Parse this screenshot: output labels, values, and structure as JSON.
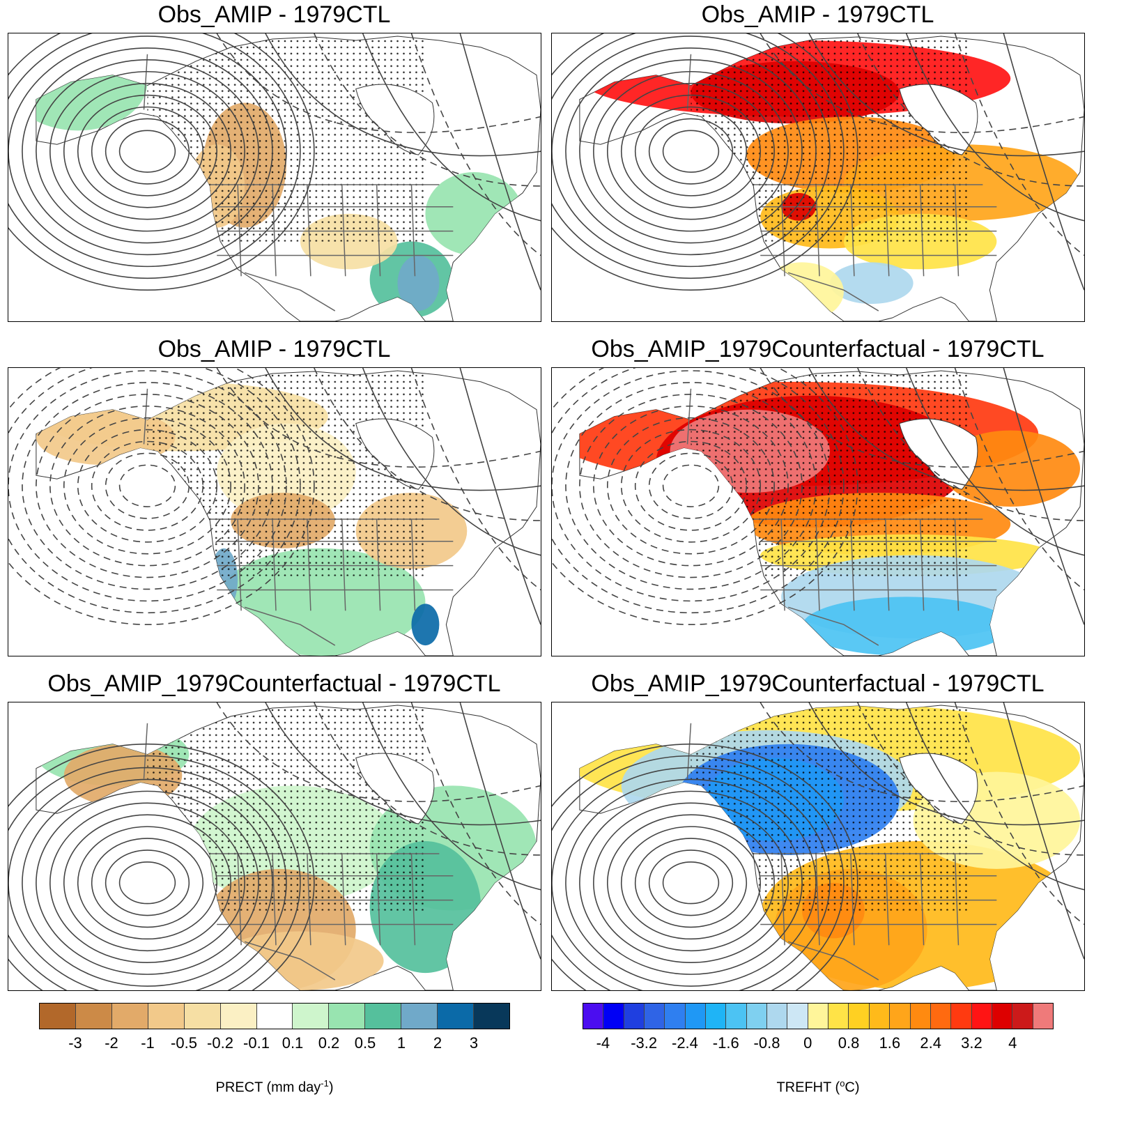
{
  "panels": [
    {
      "title": "Obs_AMIP - 1979CTL",
      "variable": "PRECT",
      "pattern": "p1"
    },
    {
      "title": "Obs_AMIP - 1979CTL",
      "variable": "TREFHT",
      "pattern": "t1"
    },
    {
      "title": "Obs_AMIP - 1979CTL",
      "variable": "PRECT",
      "pattern": "p2"
    },
    {
      "title": "Obs_AMIP_1979Counterfactual - 1979CTL",
      "variable": "TREFHT",
      "pattern": "t2"
    },
    {
      "title": "Obs_AMIP_1979Counterfactual - 1979CTL",
      "variable": "PRECT",
      "pattern": "p3"
    },
    {
      "title": "Obs_AMIP_1979Counterfactual - 1979CTL",
      "variable": "TREFHT",
      "pattern": "t3"
    }
  ],
  "colorbars": {
    "precip": {
      "label_main": "PRECT (mm day",
      "label_sup": "-1",
      "label_end": ")",
      "colors": [
        "#b2682a",
        "#cc8a47",
        "#e2aa69",
        "#f2c98a",
        "#f6dfa4",
        "#fbf0c4",
        "#ffffff",
        "#cef5cc",
        "#98e4b0",
        "#55c09c",
        "#70a9c9",
        "#0b6aa8",
        "#08385a"
      ],
      "ticks": [
        "-3",
        "-2",
        "-1",
        "-0.5",
        "-0.2",
        "-0.1",
        "0.1",
        "0.2",
        "0.5",
        "1",
        "2",
        "3"
      ]
    },
    "temp": {
      "label_main": "TREFHT (",
      "label_sup": "o",
      "label_end": "C)",
      "colors": [
        "#4b0df0",
        "#0000f5",
        "#1f3fe0",
        "#2f64e6",
        "#2f7ff0",
        "#1f98f5",
        "#1fb4f6",
        "#4cc3f3",
        "#7fd0f0",
        "#aed8ee",
        "#cde7f5",
        "#fff59a",
        "#ffe347",
        "#ffd022",
        "#ffba1a",
        "#ffa51a",
        "#ff8a10",
        "#ff6a10",
        "#ff3a10",
        "#ff1414",
        "#dd0000",
        "#cc1a1a",
        "#ef7a7a"
      ],
      "ticks": [
        "-4",
        "-3.2",
        "-2.4",
        "-1.6",
        "-0.8",
        "0",
        "0.8",
        "1.6",
        "2.4",
        "3.2",
        "4"
      ]
    }
  }
}
